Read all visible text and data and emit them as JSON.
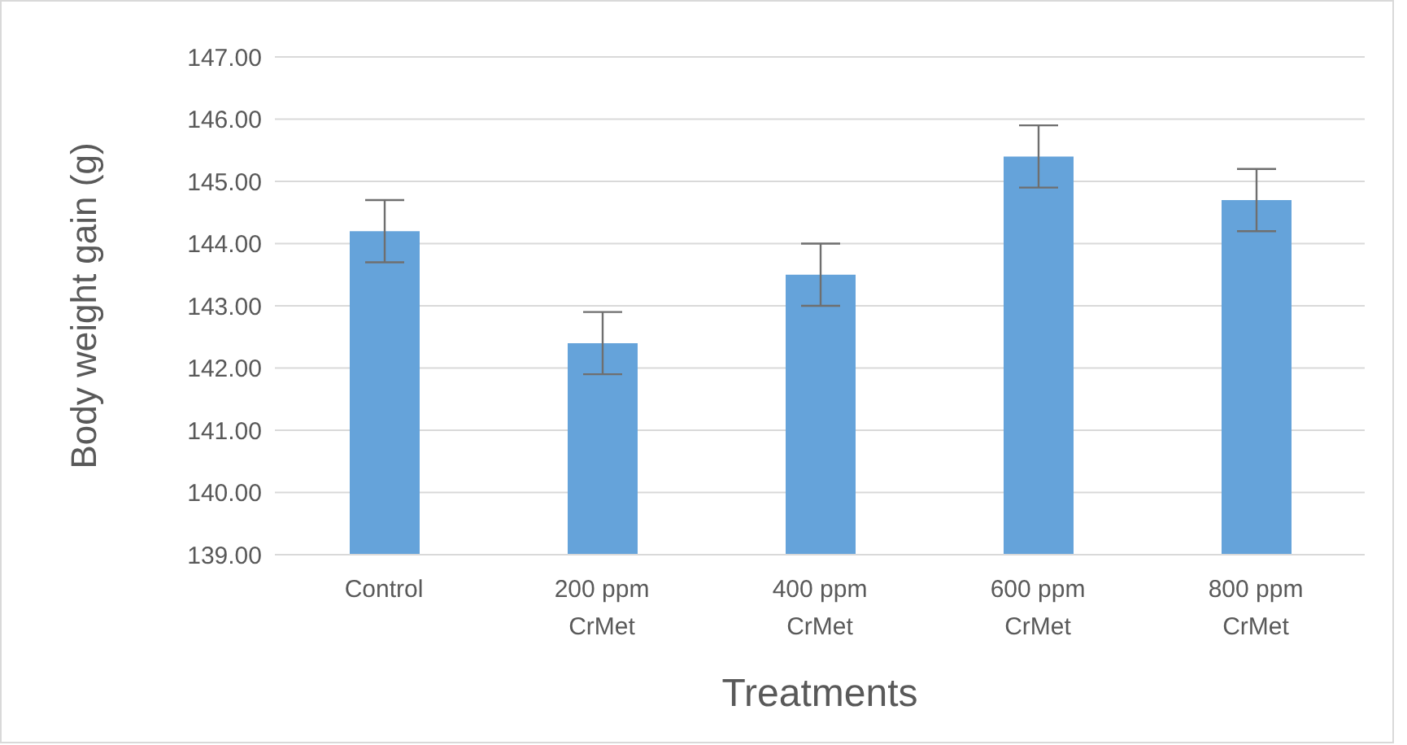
{
  "chart_data": {
    "type": "bar",
    "xlabel": "Treatments",
    "ylabel": "Body weight gain (g)",
    "categories": [
      "Control",
      "200 ppm CrMet",
      "400 ppm CrMet",
      "600 ppm CrMet",
      "800 ppm CrMet"
    ],
    "values": [
      144.2,
      142.4,
      143.5,
      145.4,
      144.7
    ],
    "errors": [
      0.5,
      0.5,
      0.5,
      0.5,
      0.5
    ],
    "color": "#65a3da",
    "ylim": [
      139,
      147
    ],
    "yticks": [
      {
        "value": 139,
        "label": "139.00"
      },
      {
        "value": 140,
        "label": "140.00"
      },
      {
        "value": 141,
        "label": "141.00"
      },
      {
        "value": 142,
        "label": "142.00"
      },
      {
        "value": 143,
        "label": "143.00"
      },
      {
        "value": 144,
        "label": "144.00"
      },
      {
        "value": 145,
        "label": "145.00"
      },
      {
        "value": 146,
        "label": "146.00"
      },
      {
        "value": 147,
        "label": "147.00"
      }
    ],
    "grid": "y"
  }
}
